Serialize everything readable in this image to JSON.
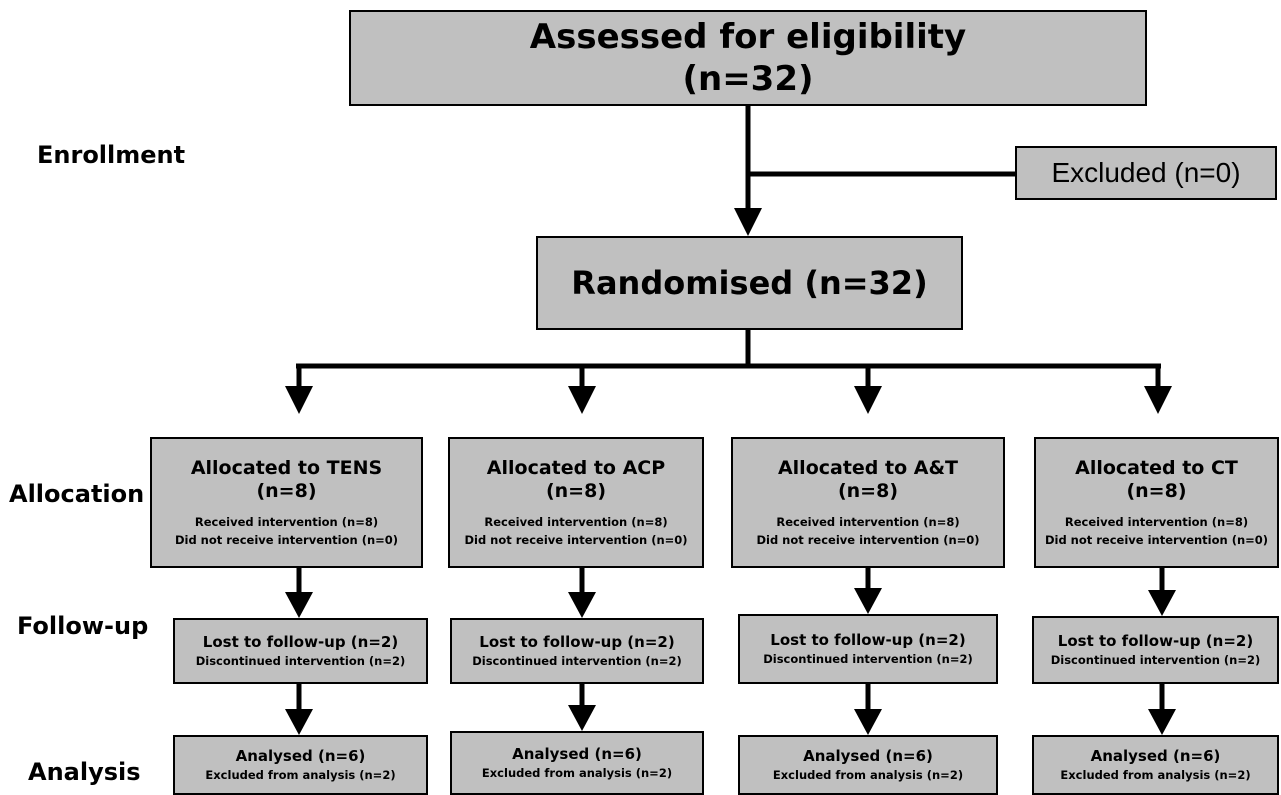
{
  "stages": {
    "enrollment": "Enrollment",
    "allocation": "Allocation",
    "followup": "Follow-up",
    "analysis": "Analysis"
  },
  "eligibility": {
    "title": "Assessed for eligibility",
    "n": "(n=32)"
  },
  "excluded": "Excluded (n=0)",
  "randomised": "Randomised (n=32)",
  "arms": [
    {
      "allocated_title": "Allocated to TENS",
      "allocated_n": "(n=8)",
      "received": "Received intervention (n=8)",
      "not_received": "Did not receive intervention (n=0)",
      "lost": "Lost to follow-up (n=2)",
      "discontinued": "Discontinued intervention (n=2)",
      "analysed": "Analysed (n=6)",
      "excluded_analysis": "Excluded from analysis (n=2)"
    },
    {
      "allocated_title": "Allocated to ACP",
      "allocated_n": "(n=8)",
      "received": "Received intervention (n=8)",
      "not_received": "Did not receive intervention (n=0)",
      "lost": "Lost to follow-up (n=2)",
      "discontinued": "Discontinued intervention (n=2)",
      "analysed": "Analysed (n=6)",
      "excluded_analysis": "Excluded from analysis (n=2)"
    },
    {
      "allocated_title": "Allocated to A&T",
      "allocated_n": "(n=8)",
      "received": "Received intervention (n=8)",
      "not_received": "Did not receive intervention (n=0)",
      "lost": "Lost to follow-up (n=2)",
      "discontinued": "Discontinued intervention (n=2)",
      "analysed": "Analysed (n=6)",
      "excluded_analysis": "Excluded from analysis (n=2)"
    },
    {
      "allocated_title": "Allocated to CT",
      "allocated_n": "(n=8)",
      "received": "Received intervention (n=8)",
      "not_received": "Did not receive intervention (n=0)",
      "lost": "Lost to follow-up (n=2)",
      "discontinued": "Discontinued intervention (n=2)",
      "analysed": "Analysed (n=6)",
      "excluded_analysis": "Excluded from analysis (n=2)"
    }
  ]
}
